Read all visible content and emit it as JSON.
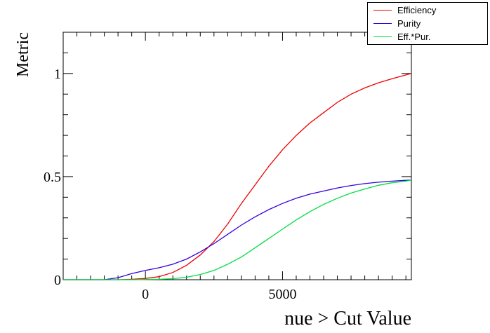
{
  "chart_data": {
    "type": "line",
    "title": "",
    "xlabel": "nue > Cut Value",
    "ylabel": "Metric",
    "xlim": [
      -3000,
      9700
    ],
    "ylim": [
      0,
      1.2
    ],
    "xticks": [
      {
        "value": 0,
        "label": "0"
      },
      {
        "value": 5000,
        "label": "5000"
      }
    ],
    "yticks": [
      {
        "value": 0,
        "label": "0"
      },
      {
        "value": 0.5,
        "label": "0.5"
      },
      {
        "value": 1,
        "label": "1"
      }
    ],
    "grid": false,
    "legend_position": "top-right",
    "x": [
      -3000,
      -2000,
      -1500,
      -1000,
      -500,
      0,
      500,
      1000,
      1500,
      2000,
      2500,
      3000,
      3500,
      4000,
      4500,
      5000,
      5500,
      6000,
      6500,
      7000,
      7500,
      8000,
      8500,
      9000,
      9500,
      9700
    ],
    "series": [
      {
        "name": "Efficiency",
        "color": "#ee0000",
        "values": [
          0,
          0,
          0,
          0,
          0.002,
          0.006,
          0.015,
          0.035,
          0.07,
          0.12,
          0.185,
          0.27,
          0.37,
          0.46,
          0.55,
          0.63,
          0.7,
          0.76,
          0.81,
          0.86,
          0.9,
          0.93,
          0.955,
          0.975,
          0.993,
          1.0
        ]
      },
      {
        "name": "Purity",
        "color": "#3300dd",
        "values": [
          0,
          0,
          0,
          0.01,
          0.03,
          0.045,
          0.058,
          0.075,
          0.1,
          0.135,
          0.175,
          0.22,
          0.265,
          0.305,
          0.34,
          0.37,
          0.395,
          0.415,
          0.43,
          0.445,
          0.457,
          0.466,
          0.473,
          0.478,
          0.482,
          0.483
        ]
      },
      {
        "name": "Eff.*Pur.",
        "color": "#00dd44",
        "values": [
          0,
          0,
          0,
          0,
          0,
          0.001,
          0.002,
          0.005,
          0.012,
          0.025,
          0.045,
          0.075,
          0.11,
          0.155,
          0.2,
          0.245,
          0.29,
          0.33,
          0.365,
          0.395,
          0.42,
          0.44,
          0.458,
          0.47,
          0.478,
          0.483
        ]
      }
    ]
  }
}
